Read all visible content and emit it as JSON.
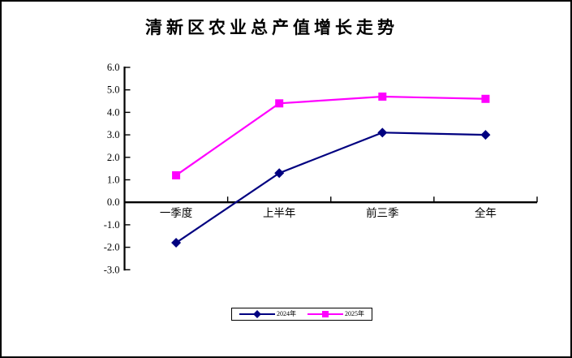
{
  "chart_data": {
    "type": "line",
    "title": "清新区农业总产值增长走势",
    "categories": [
      "一季度",
      "上半年",
      "前三季",
      "全年"
    ],
    "series": [
      {
        "name": "2024年",
        "color": "#000080",
        "marker": "diamond",
        "values": [
          -1.8,
          1.3,
          3.1,
          3.0
        ]
      },
      {
        "name": "2025年",
        "color": "#FF00FF",
        "marker": "square",
        "values": [
          1.2,
          4.4,
          4.7,
          4.6
        ]
      }
    ],
    "ylim": [
      -3.0,
      6.0
    ],
    "ytick_step": 1.0,
    "y_tick_labels": [
      "6.0",
      "5.0",
      "4.0",
      "3.0",
      "2.0",
      "1.0",
      "0.0",
      "-1.0",
      "-2.0",
      "-3.0"
    ],
    "grid": false,
    "legend_position": "bottom",
    "background_color": "#FFFFFF",
    "axis_color": "#000000"
  }
}
